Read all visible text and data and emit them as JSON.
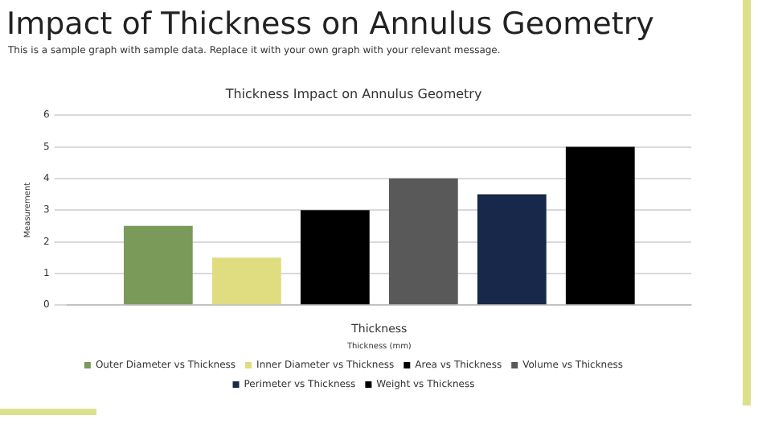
{
  "chart_data": {
    "type": "bar",
    "title": "Impact of Thickness on Annulus Geometry",
    "subtitle": "This is a sample graph with sample data. Replace it with your own graph with your relevant message.",
    "annotations": [
      "Thickness Impact on Annulus Geometry"
    ],
    "categories": [
      "Thickness"
    ],
    "xlabel": "Thickness (mm)",
    "ylabel": "Measurement",
    "series": [
      {
        "name": "Outer Diameter vs Thickness",
        "color": "#7a9a5a",
        "values": [
          2.5
        ]
      },
      {
        "name": "Inner Diameter vs Thickness",
        "color": "#e0dc80",
        "values": [
          1.5
        ]
      },
      {
        "name": "Area vs Thickness",
        "color": "#000000",
        "values": [
          3
        ]
      },
      {
        "name": "Volume vs Thickness",
        "color": "#595959",
        "values": [
          4
        ]
      },
      {
        "name": "Perimeter vs Thickness",
        "color": "#17284a",
        "values": [
          3.5
        ]
      },
      {
        "name": "Weight vs Thickness",
        "color": "#000000",
        "values": [
          5
        ]
      }
    ],
    "ylim": [
      0,
      6
    ],
    "yticks": [
      0,
      1,
      2,
      3,
      4,
      5,
      6
    ],
    "grid": "y",
    "legend": "bottom"
  }
}
